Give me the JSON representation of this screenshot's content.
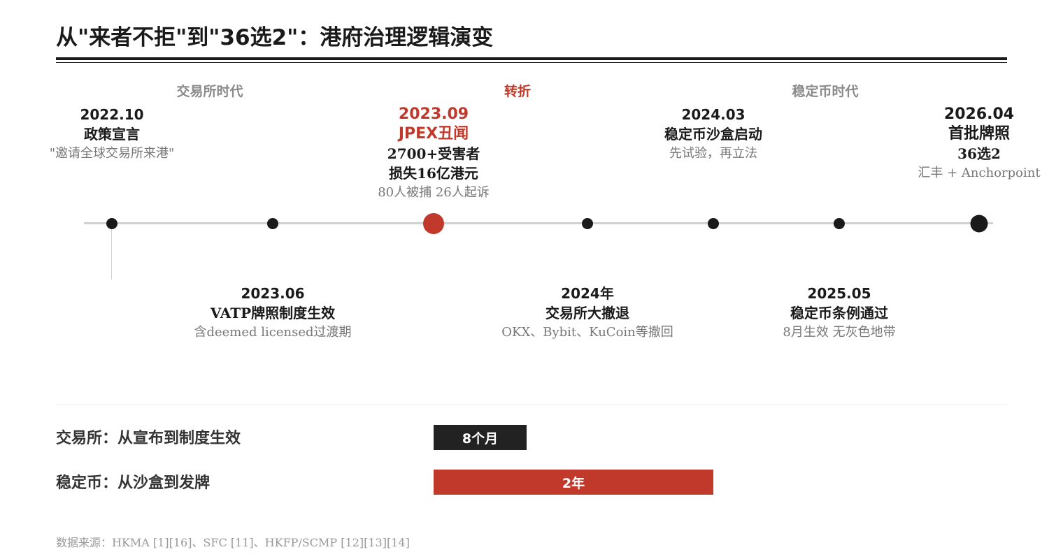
{
  "title": "从\"来者不拒\"到\"36选2\"：港府治理逻辑演变",
  "eras": [
    {
      "label": "交易所时代",
      "accent": false
    },
    {
      "label": "转折",
      "accent": true
    },
    {
      "label": "稳定币时代",
      "accent": false
    }
  ],
  "events": [
    {
      "date": "2022.10",
      "headline": "政策宣言",
      "lines": [
        "\"邀请全球交易所来港\""
      ]
    },
    {
      "date": "2023.06",
      "headline": "VATP牌照制度生效",
      "lines": [
        "含deemed licensed过渡期"
      ]
    },
    {
      "date": "2023.09",
      "headline": "JPEX丑闻",
      "bold_lines": [
        "2700+受害者",
        "损失16亿港元"
      ],
      "lines": [
        "80人被捕 26人起诉"
      ]
    },
    {
      "date": "2024年",
      "headline": "交易所大撤退",
      "lines": [
        "OKX、Bybit、KuCoin等撤回"
      ]
    },
    {
      "date": "2024.03",
      "headline": "稳定币沙盒启动",
      "lines": [
        "先试验，再立法"
      ]
    },
    {
      "date": "2025.05",
      "headline": "稳定币条例通过",
      "lines": [
        "8月生效 无灰色地带"
      ]
    },
    {
      "date": "2026.04",
      "headline": "首批牌照",
      "bold_lines": [
        "36选2"
      ],
      "lines": [
        "汇丰 + Anchorpoint"
      ]
    }
  ],
  "comparison": [
    {
      "label": "交易所：从宣布到制度生效",
      "value": "8个月",
      "months": 8,
      "color": "#222222"
    },
    {
      "label": "稳定币：从沙盒到发牌",
      "value": "2年",
      "months": 24,
      "color": "#c0392b"
    }
  ],
  "source": "数据来源：HKMA [1][16]、SFC [11]、HKFP/SCMP [12][13][14]",
  "colors": {
    "accent": "#c0392b",
    "dark": "#1a1a1a",
    "muted": "#777777",
    "axis": "#d0d0d0"
  }
}
